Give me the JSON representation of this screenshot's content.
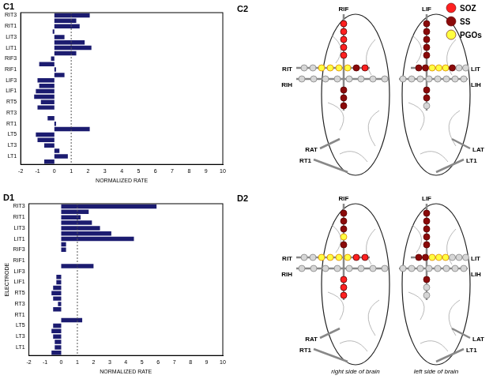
{
  "chart_data": [
    {
      "type": "bar",
      "orientation": "horizontal",
      "panel_label": "C1",
      "x_label": "NORMALIZED RATE",
      "categories": [
        "RIT3",
        null,
        "RIT1",
        null,
        "LIT3",
        null,
        "LIT1",
        null,
        "RIF3",
        null,
        "RIF1",
        null,
        "LIF3",
        null,
        "LIF1",
        null,
        "RT5",
        null,
        "RT3",
        null,
        "RT1",
        null,
        "LT5",
        null,
        "LT3",
        null,
        "LT1",
        null
      ],
      "values": [
        2.1,
        1.3,
        1.5,
        -0.1,
        0.6,
        1.8,
        2.2,
        1.3,
        -0.2,
        -0.9,
        0.1,
        0.6,
        -1.0,
        -0.9,
        -1.1,
        -1.2,
        -0.8,
        -1.0,
        0,
        -0.4,
        0.1,
        2.1,
        -1.1,
        -1.0,
        -0.6,
        0.3,
        0.8,
        -0.6
      ],
      "color": "#1c1c70",
      "xlim": [
        -2,
        10
      ],
      "xticks": [
        -2,
        -1,
        0,
        1,
        2,
        3,
        4,
        5,
        6,
        7,
        8,
        9,
        10
      ],
      "threshold": 1,
      "grid": false
    },
    {
      "type": "bar",
      "orientation": "horizontal",
      "panel_label": "D1",
      "x_label": "NORMALIZED RATE",
      "y_label": "ELECTRODE",
      "categories": [
        "RIT3",
        null,
        "RIT1",
        null,
        "LIT3",
        null,
        "LIT1",
        null,
        "RIF3",
        null,
        "RIF1",
        null,
        "LIF3",
        null,
        "LIF1",
        null,
        "RT5",
        null,
        "RT3",
        null,
        "RT1",
        null,
        "LT5",
        null,
        "LT3",
        null,
        "LT1",
        null
      ],
      "values": [
        5.9,
        1.7,
        1.2,
        1.9,
        2.4,
        3.1,
        4.5,
        0.3,
        0.3,
        0,
        0,
        2.0,
        0,
        -0.3,
        -0.3,
        -0.5,
        -0.6,
        -0.5,
        -0.2,
        -0.5,
        0,
        1.3,
        -0.5,
        -0.6,
        -0.5,
        -0.4,
        -0.4,
        -0.6
      ],
      "color": "#1c1c70",
      "xlim": [
        -2,
        10
      ],
      "xticks": [
        -2,
        -1,
        0,
        1,
        2,
        3,
        4,
        5,
        6,
        7,
        8,
        9,
        10
      ],
      "threshold": 1,
      "grid": false
    }
  ],
  "diagram_legend": [
    {
      "label": "SOZ",
      "color": "#ff2020"
    },
    {
      "label": "SS",
      "color": "#8b0a0a"
    },
    {
      "label": "PGOs",
      "color": "#ffff40"
    }
  ],
  "diagrams": [
    {
      "panel_label": "C2",
      "strips": [
        {
          "label": "RIF",
          "contacts": [
            "SOZ",
            "SOZ",
            "SOZ",
            "SOZ",
            "SOZ",
            "SS",
            "SS",
            "SS"
          ]
        },
        {
          "label": "RIT",
          "contacts": [
            null,
            null,
            "PGOs",
            "PGOs",
            "PGOs",
            "PGOs",
            "SS",
            "SOZ"
          ]
        },
        {
          "label": "RIH",
          "contacts": [
            null,
            null,
            null,
            null,
            null,
            null,
            null,
            null
          ]
        },
        {
          "label": "RAT"
        },
        {
          "label": "RT1"
        },
        {
          "label": "LIF",
          "contacts": [
            "SS",
            "SS",
            "SS",
            "SS",
            "SS",
            "SS",
            "SS",
            null
          ]
        },
        {
          "label": "LIT",
          "contacts": [
            "SS",
            "SS",
            "PGOs",
            "PGOs",
            "PGOs",
            "SS",
            null,
            null
          ]
        },
        {
          "label": "LIH",
          "contacts": [
            null,
            null,
            null,
            null,
            null,
            null,
            null,
            null
          ]
        },
        {
          "label": "LAT"
        },
        {
          "label": "LT1"
        }
      ]
    },
    {
      "panel_label": "D2",
      "strips": [
        {
          "label": "RIF",
          "contacts": [
            "SS",
            "SS",
            "SS",
            "PGOs",
            "SS",
            "SOZ",
            "SOZ",
            "SOZ"
          ]
        },
        {
          "label": "RIT",
          "contacts": [
            null,
            null,
            "PGOs",
            "PGOs",
            "PGOs",
            "PGOs",
            "SOZ",
            "SOZ"
          ]
        },
        {
          "label": "RIH",
          "contacts": [
            null,
            null,
            null,
            null,
            null,
            null,
            null,
            null
          ]
        },
        {
          "label": "RAT"
        },
        {
          "label": "RT1"
        },
        {
          "label": "LIF",
          "contacts": [
            "SS",
            "SS",
            "SS",
            "SS",
            "SS",
            "SS",
            null,
            null
          ]
        },
        {
          "label": "LIT",
          "contacts": [
            "SS",
            "SS",
            "PGOs",
            "PGOs",
            "PGOs",
            null,
            null,
            null
          ]
        },
        {
          "label": "LIH",
          "contacts": [
            null,
            null,
            null,
            null,
            null,
            null,
            null,
            null
          ]
        },
        {
          "label": "LAT"
        },
        {
          "label": "LT1"
        }
      ]
    }
  ],
  "captions": [
    "right side of brain",
    "left side of brain"
  ]
}
